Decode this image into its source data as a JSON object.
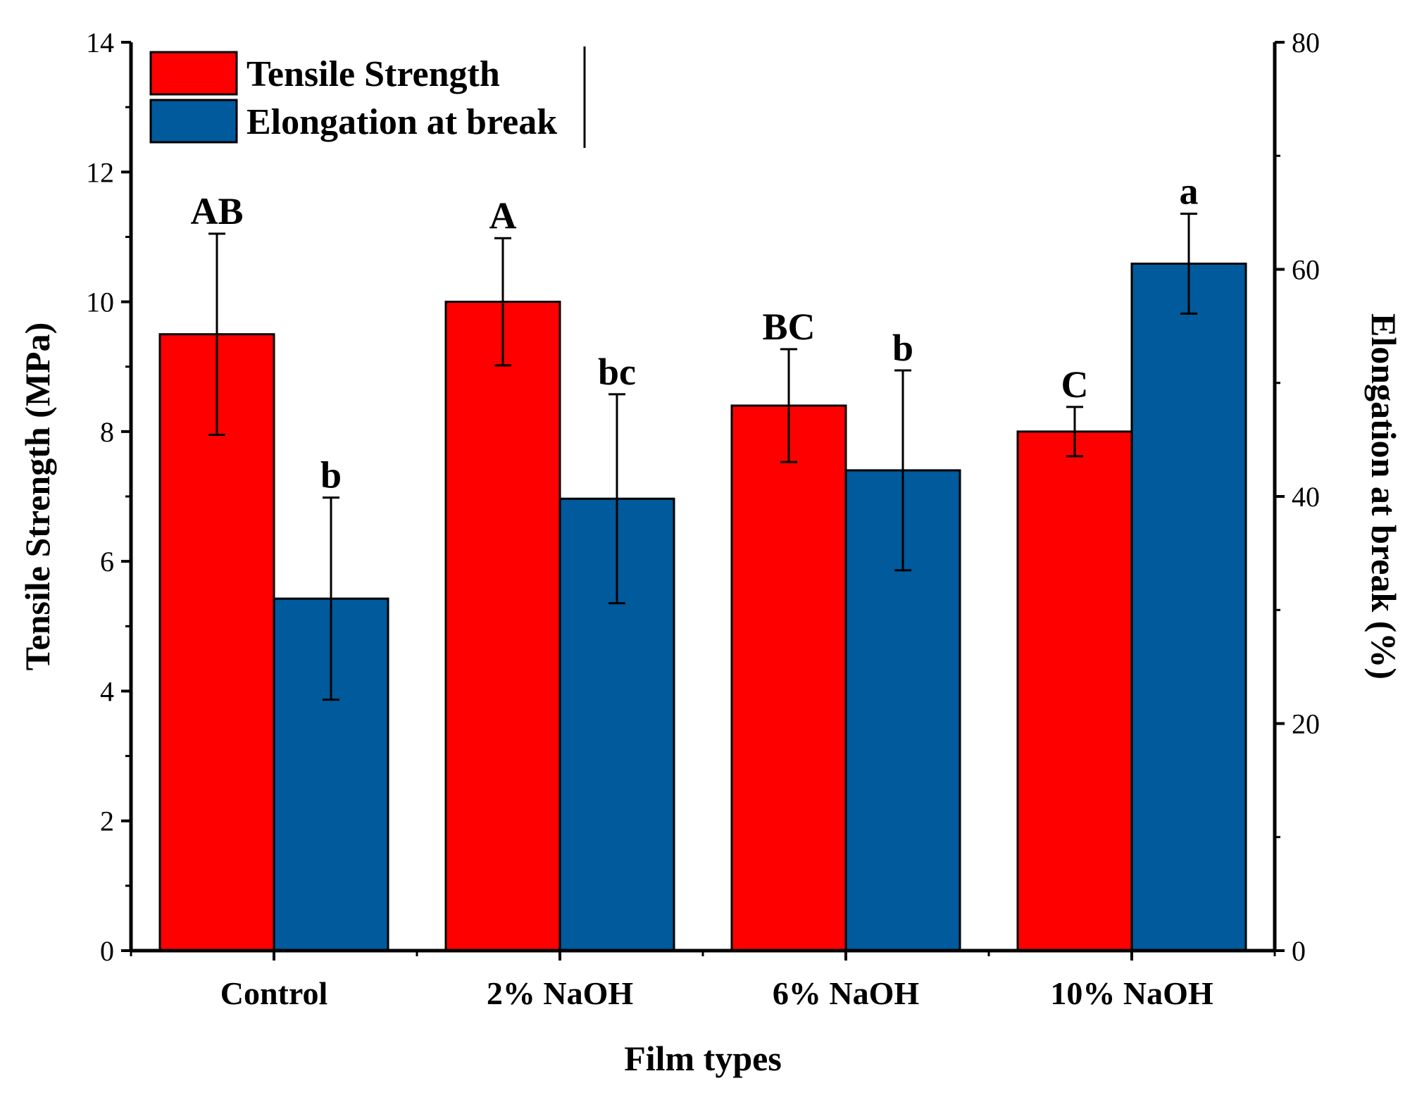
{
  "chart_data": {
    "type": "bar",
    "xlabel": "Film types",
    "ylabel_left": "Tensile Strength (MPa)",
    "ylabel_right": "Elongation at break (%)",
    "ylim_left": [
      0,
      14
    ],
    "ylim_right": [
      0,
      80
    ],
    "yticks_left": [
      0,
      2,
      4,
      6,
      8,
      10,
      12,
      14
    ],
    "yticks_right": [
      0,
      20,
      40,
      60,
      80
    ],
    "categories": [
      "Control",
      "2% NaOH",
      "6% NaOH",
      "10% NaOH"
    ],
    "legend_position": "top-left",
    "grid": false,
    "series": [
      {
        "name": "Tensile Strength",
        "axis": "left",
        "color": "#ff0000",
        "values": [
          9.5,
          10.0,
          8.4,
          8.0
        ],
        "errors": [
          1.55,
          0.98,
          0.87,
          0.38
        ],
        "labels": [
          "AB",
          "A",
          "BC",
          "C"
        ]
      },
      {
        "name": "Elongation at break",
        "axis": "right",
        "color": "#005a9c",
        "values": [
          31.0,
          39.8,
          42.3,
          60.5
        ],
        "errors": [
          8.9,
          9.2,
          8.8,
          4.4
        ],
        "labels": [
          "b",
          "bc",
          "b",
          "a"
        ]
      }
    ]
  }
}
